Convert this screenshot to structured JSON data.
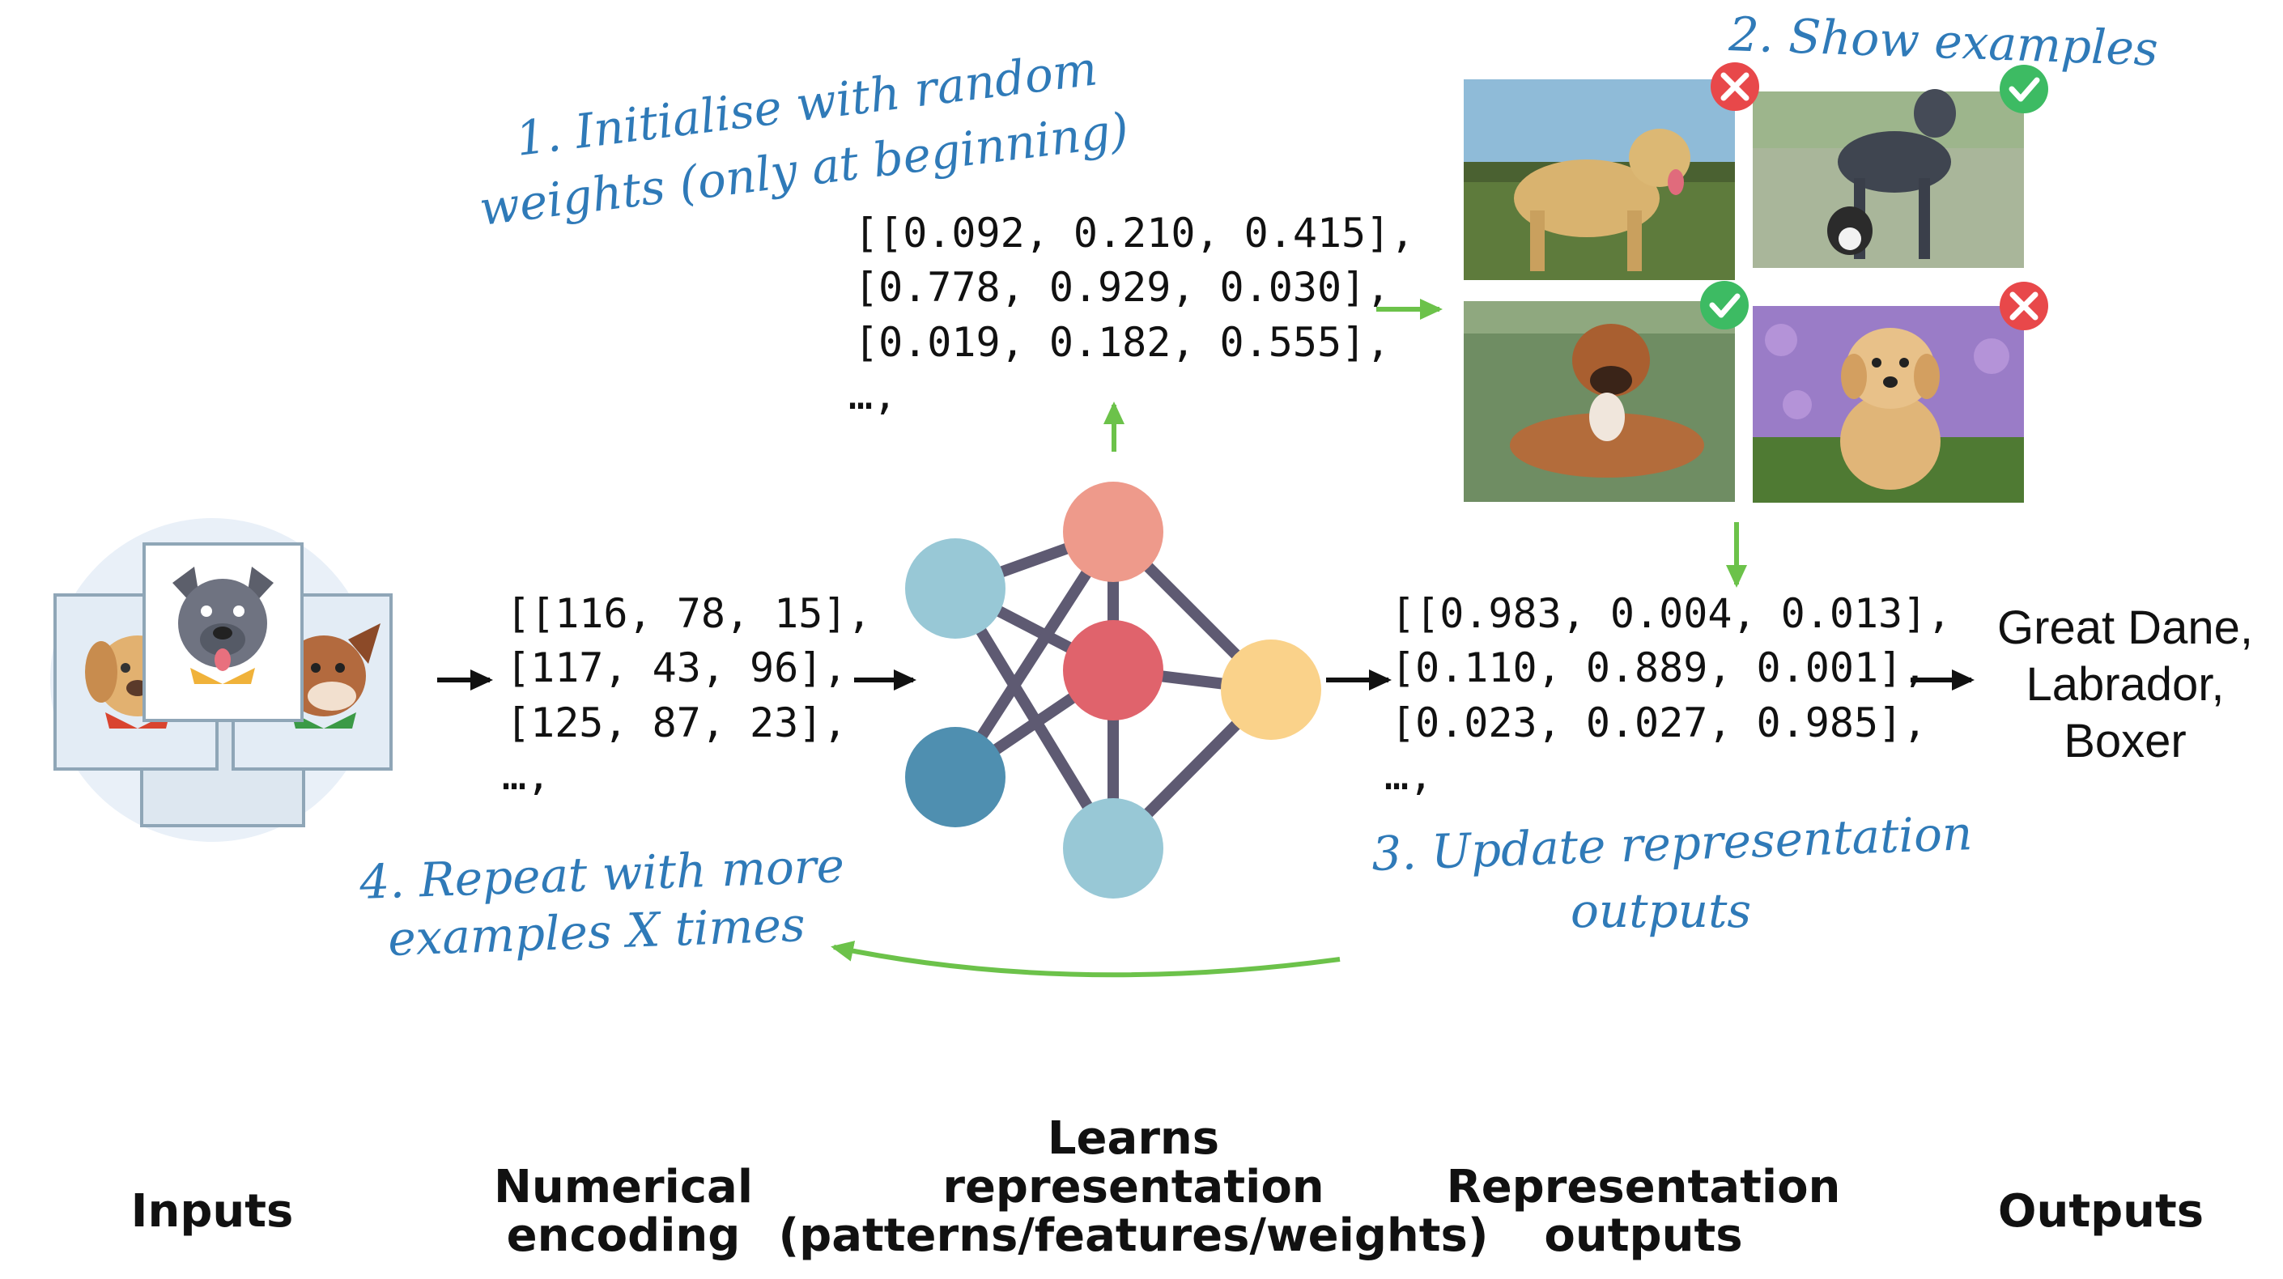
{
  "steps": {
    "init": {
      "line1": "1. Initialise with random",
      "line2": "weights (only at beginning)"
    },
    "show": "2. Show examples",
    "update": {
      "line1": "3. Update representation",
      "line2": "outputs"
    },
    "repeat": {
      "line1": "4. Repeat with more",
      "line2": "examples X times"
    }
  },
  "weights_matrix": [
    "[[0.092, 0.210, 0.415],",
    "[0.778, 0.929, 0.030],",
    "[0.019, 0.182, 0.555],",
    "…,"
  ],
  "encoding_matrix": [
    "[[116, 78, 15],",
    "[117, 43, 96],",
    "[125, 87, 23],",
    "…,"
  ],
  "output_matrix": [
    "[[0.983, 0.004, 0.013],",
    "[0.110, 0.889, 0.001],",
    "[0.023, 0.027, 0.985],",
    "…,"
  ],
  "outputs_text": [
    "Great Dane,",
    "Labrador,",
    "Boxer"
  ],
  "labels": {
    "inputs": "Inputs",
    "encoding": {
      "line1": "Numerical",
      "line2": "encoding"
    },
    "learns": {
      "line1": "Learns",
      "line2": "representation",
      "line3": "(patterns/features/weights)"
    },
    "rep_outputs": {
      "line1": "Representation",
      "line2": "outputs"
    },
    "outputs": "Outputs"
  },
  "example_images": [
    {
      "name": "labrador",
      "correct": false
    },
    {
      "name": "great-dane",
      "correct": true
    },
    {
      "name": "boxer",
      "correct": true
    },
    {
      "name": "golden-puppy",
      "correct": false
    }
  ],
  "colors": {
    "hand": "#2f7ab8",
    "green_arrow": "#6cc24a",
    "check": "#3dbb63",
    "cross": "#e8484a",
    "node_pink": "#ee9a8b",
    "node_red": "#e0636c",
    "node_lightblue": "#98c8d6",
    "node_darkblue": "#4f8fb0",
    "node_yellow": "#fad28a",
    "edge": "#5e5a72"
  }
}
